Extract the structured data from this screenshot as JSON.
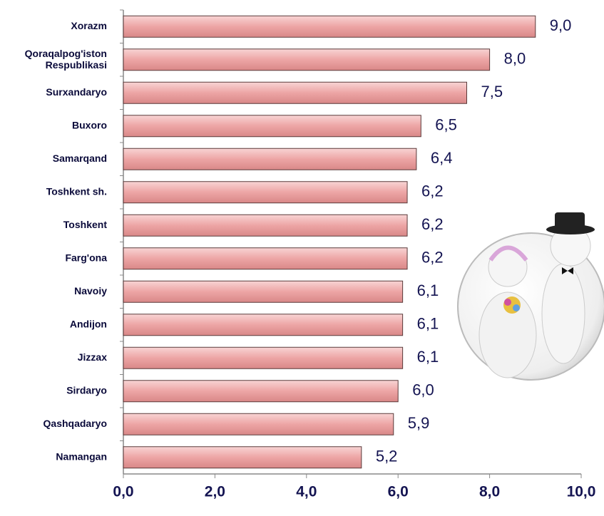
{
  "chart_data": {
    "type": "hbar",
    "categories": [
      "Xorazm",
      "Qoraqalpog'iston Respublikasi",
      "Surxandaryo",
      "Buxoro",
      "Samarqand",
      "Toshkent sh.",
      "Toshkent",
      "Farg'ona",
      "Navoiy",
      "Andijon",
      "Jizzax",
      "Sirdaryo",
      "Qashqadaryo",
      "Namangan"
    ],
    "values": [
      9.0,
      8.0,
      7.5,
      6.5,
      6.4,
      6.2,
      6.2,
      6.2,
      6.1,
      6.1,
      6.1,
      6.0,
      5.9,
      5.2
    ],
    "value_labels": [
      "9,0",
      "8,0",
      "7,5",
      "6,5",
      "6,4",
      "6,2",
      "6,2",
      "6,2",
      "6,1",
      "6,1",
      "6,1",
      "6,0",
      "5,9",
      "5,2"
    ],
    "color": "#eda5a5",
    "xlim": [
      0,
      10
    ],
    "xticks": [
      {
        "value": 0,
        "label": "0,0"
      },
      {
        "value": 2,
        "label": "2,0"
      },
      {
        "value": 4,
        "label": "4,0"
      },
      {
        "value": 6,
        "label": "6,0"
      },
      {
        "value": 8,
        "label": "8,0"
      },
      {
        "value": 10,
        "label": "10,0"
      }
    ],
    "grid": false
  }
}
